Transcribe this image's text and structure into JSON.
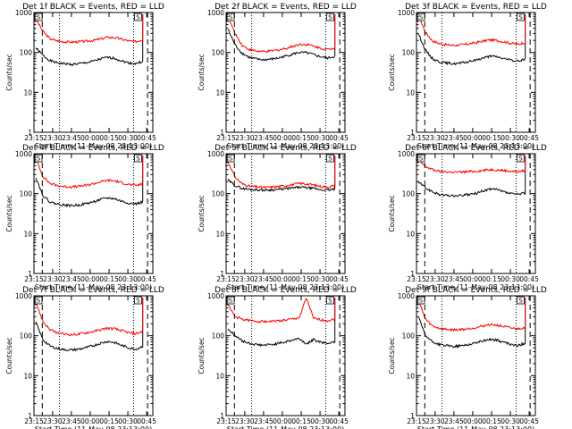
{
  "chart_data": [
    {
      "type": "line",
      "title": "Det 1f BLACK = Events, RED = LLD",
      "xlabel": "Start Time (11-May-08 23:13:00)",
      "ylabel": "Counts/sec",
      "yscale": "log",
      "ylim": [
        1,
        1000
      ],
      "y_ticks": [
        "1",
        "10",
        "100",
        "1000"
      ],
      "x_ticks": [
        "23:15",
        "23:30",
        "23:45",
        "00:00",
        "00:15",
        "00:30",
        "00:45"
      ],
      "saa_marker": "S",
      "series": [
        {
          "name": "Events",
          "color": "#000000",
          "values": [
            130,
            85,
            62,
            55,
            52,
            50,
            52,
            55,
            60,
            68,
            75,
            72,
            62,
            55,
            52,
            60
          ]
        },
        {
          "name": "LLD",
          "color": "#ff0000",
          "values": [
            700,
            340,
            220,
            195,
            185,
            182,
            185,
            190,
            200,
            215,
            240,
            235,
            215,
            195,
            185,
            210
          ]
        }
      ]
    },
    {
      "type": "line",
      "title": "Det 2f BLACK = Events, RED = LLD",
      "xlabel": "Start Time (11-May-08 23:13:00)",
      "ylabel": "Counts/sec",
      "yscale": "log",
      "ylim": [
        1,
        1000
      ],
      "y_ticks": [
        "1",
        "10",
        "100",
        "1000"
      ],
      "x_ticks": [
        "23:15",
        "23:30",
        "23:45",
        "00:00",
        "00:15",
        "00:30",
        "00:45"
      ],
      "saa_marker": "S",
      "series": [
        {
          "name": "Events",
          "color": "#000000",
          "values": [
            380,
            155,
            95,
            75,
            68,
            65,
            68,
            72,
            80,
            90,
            100,
            98,
            88,
            78,
            72,
            80
          ]
        },
        {
          "name": "LLD",
          "color": "#ff0000",
          "values": [
            800,
            300,
            150,
            118,
            108,
            104,
            108,
            115,
            125,
            140,
            160,
            158,
            145,
            128,
            118,
            130
          ]
        }
      ]
    },
    {
      "type": "line",
      "title": "Det 3f BLACK = Events, RED = LLD",
      "xlabel": "Start Time (11-May-08 23:13:00)",
      "ylabel": "Counts/sec",
      "yscale": "log",
      "ylim": [
        1,
        1000
      ],
      "y_ticks": [
        "1",
        "10",
        "100",
        "1000"
      ],
      "x_ticks": [
        "23:15",
        "23:30",
        "23:45",
        "00:00",
        "00:15",
        "00:30",
        "00:45"
      ],
      "saa_marker": "S",
      "series": [
        {
          "name": "Events",
          "color": "#000000",
          "values": [
            300,
            115,
            70,
            58,
            54,
            52,
            54,
            58,
            64,
            72,
            80,
            78,
            70,
            64,
            60,
            70
          ]
        },
        {
          "name": "LLD",
          "color": "#ff0000",
          "values": [
            900,
            320,
            195,
            165,
            155,
            150,
            155,
            162,
            175,
            190,
            205,
            200,
            185,
            170,
            160,
            180
          ]
        }
      ]
    },
    {
      "type": "line",
      "title": "Det 4f BLACK = Events, RED = LLD",
      "xlabel": "Start Time (11-May-08 23:13:00)",
      "ylabel": "Counts/sec",
      "yscale": "log",
      "ylim": [
        1,
        1000
      ],
      "y_ticks": [
        "1",
        "10",
        "100",
        "1000"
      ],
      "x_ticks": [
        "23:15",
        "23:30",
        "23:45",
        "00:00",
        "00:15",
        "00:30",
        "00:45"
      ],
      "saa_marker": "S",
      "series": [
        {
          "name": "Events",
          "color": "#000000",
          "values": [
            260,
            90,
            62,
            55,
            52,
            50,
            52,
            56,
            62,
            70,
            78,
            75,
            65,
            58,
            55,
            62
          ]
        },
        {
          "name": "LLD",
          "color": "#ff0000",
          "values": [
            800,
            270,
            180,
            160,
            150,
            148,
            152,
            160,
            175,
            195,
            215,
            210,
            190,
            170,
            160,
            175
          ]
        }
      ]
    },
    {
      "type": "line",
      "title": "Det 5f BLACK = Events, RED = LLD",
      "xlabel": "Start Time (11-May-08 23:13:00)",
      "ylabel": "Counts/sec",
      "yscale": "log",
      "ylim": [
        1,
        1000
      ],
      "y_ticks": [
        "1",
        "10",
        "100",
        "1000"
      ],
      "x_ticks": [
        "23:15",
        "23:30",
        "23:45",
        "00:00",
        "00:15",
        "00:30",
        "00:45"
      ],
      "saa_marker": "S",
      "series": [
        {
          "name": "Events",
          "color": "#000000",
          "values": [
            220,
            160,
            135,
            128,
            125,
            123,
            124,
            127,
            132,
            138,
            145,
            142,
            134,
            126,
            122,
            130
          ]
        },
        {
          "name": "LLD",
          "color": "#ff0000",
          "values": [
            650,
            260,
            175,
            155,
            148,
            144,
            146,
            150,
            158,
            168,
            180,
            176,
            165,
            152,
            146,
            160
          ]
        }
      ]
    },
    {
      "type": "line",
      "title": "Det 6f BLACK = Events, RED = LLD",
      "xlabel": "Start Time (11-May-08 23:13:00)",
      "ylabel": "Counts/sec",
      "yscale": "log",
      "ylim": [
        1,
        1000
      ],
      "y_ticks": [
        "1",
        "10",
        "100",
        "1000"
      ],
      "x_ticks": [
        "23:15",
        "23:30",
        "23:45",
        "00:00",
        "00:15",
        "00:30",
        "00:45"
      ],
      "saa_marker": "S",
      "series": [
        {
          "name": "Events",
          "color": "#000000",
          "values": [
            200,
            140,
            110,
            95,
            90,
            88,
            90,
            94,
            100,
            115,
            130,
            125,
            110,
            100,
            95,
            105
          ]
        },
        {
          "name": "LLD",
          "color": "#ff0000",
          "values": [
            700,
            480,
            400,
            360,
            350,
            345,
            348,
            355,
            365,
            380,
            400,
            395,
            380,
            365,
            355,
            380
          ]
        }
      ]
    },
    {
      "type": "line",
      "title": "Det 7f BLACK = Events, RED = LLD",
      "xlabel": "Start Time (11-May-08 23:13:00)",
      "ylabel": "Counts/sec",
      "yscale": "log",
      "ylim": [
        1,
        1000
      ],
      "y_ticks": [
        "1",
        "10",
        "100",
        "1000"
      ],
      "x_ticks": [
        "23:15",
        "23:30",
        "23:45",
        "00:00",
        "00:15",
        "00:30",
        "00:45"
      ],
      "saa_marker": "S",
      "series": [
        {
          "name": "Events",
          "color": "#000000",
          "values": [
            220,
            80,
            55,
            48,
            45,
            44,
            46,
            50,
            56,
            64,
            72,
            68,
            58,
            50,
            46,
            55
          ]
        },
        {
          "name": "LLD",
          "color": "#ff0000",
          "values": [
            700,
            230,
            140,
            118,
            110,
            106,
            110,
            118,
            128,
            140,
            155,
            150,
            135,
            120,
            112,
            130
          ]
        }
      ]
    },
    {
      "type": "line",
      "title": "Det 8f BLACK = Events, RED = LLD",
      "xlabel": "Start Time (11-May-08 23:13:00)",
      "ylabel": "Counts/sec",
      "yscale": "log",
      "ylim": [
        1,
        1000
      ],
      "y_ticks": [
        "1",
        "10",
        "100",
        "1000"
      ],
      "x_ticks": [
        "23:15",
        "23:30",
        "23:45",
        "00:00",
        "00:15",
        "00:30",
        "00:45"
      ],
      "saa_marker": "S",
      "series": [
        {
          "name": "Events",
          "color": "#000000",
          "values": [
            150,
            100,
            75,
            65,
            60,
            58,
            60,
            64,
            70,
            78,
            86,
            62,
            80,
            70,
            65,
            72
          ]
        },
        {
          "name": "LLD",
          "color": "#ff0000",
          "values": [
            600,
            300,
            260,
            240,
            232,
            228,
            230,
            236,
            245,
            260,
            280,
            900,
            270,
            250,
            240,
            260
          ]
        }
      ]
    },
    {
      "type": "line",
      "title": "Det 9f BLACK = Events, RED = LLD",
      "xlabel": "Start Time (11-May-08 23:13:00)",
      "ylabel": "Counts/sec",
      "yscale": "log",
      "ylim": [
        1,
        1000
      ],
      "y_ticks": [
        "1",
        "10",
        "100",
        "1000"
      ],
      "x_ticks": [
        "23:15",
        "23:30",
        "23:45",
        "00:00",
        "00:15",
        "00:30",
        "00:45"
      ],
      "saa_marker": "S",
      "series": [
        {
          "name": "Events",
          "color": "#000000",
          "values": [
            300,
            100,
            70,
            60,
            56,
            54,
            56,
            60,
            66,
            74,
            82,
            78,
            68,
            60,
            56,
            66
          ]
        },
        {
          "name": "LLD",
          "color": "#ff0000",
          "values": [
            800,
            260,
            175,
            152,
            144,
            140,
            144,
            150,
            160,
            175,
            190,
            185,
            170,
            155,
            148,
            165
          ]
        }
      ]
    }
  ]
}
